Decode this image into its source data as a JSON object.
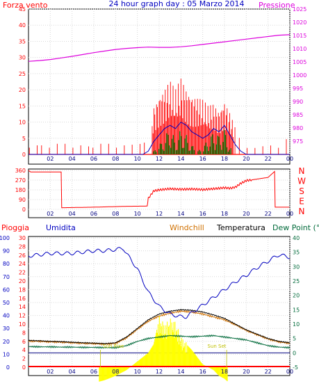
{
  "header": {
    "left_label": "Forza vento",
    "title": "24 hour graph day : 05 Marzo 2014",
    "right_label": "Pressione"
  },
  "colors": {
    "red": "#ff0000",
    "blue": "#0000c0",
    "magenta": "#dd00dd",
    "green": "#007000",
    "dark_green": "#006a3a",
    "orange": "#d07000",
    "yellow": "#ffff00",
    "black": "#000000",
    "cyan": "#008080",
    "grid": "#d8d8d8"
  },
  "chart_data": [
    {
      "id": "wind-pressure",
      "type": "line",
      "y_left": {
        "label": "Forza vento",
        "min": 0,
        "max": 45,
        "ticks": [
          "0",
          "5",
          "10",
          "15",
          "20",
          "25",
          "30",
          "35",
          "40",
          "45"
        ]
      },
      "y_right": {
        "label": "Pressione",
        "min": 970,
        "max": 1025,
        "ticks": [
          "975",
          "980",
          "985",
          "990",
          "995",
          "1000",
          "1005",
          "1010",
          "1015",
          "1020",
          "1025"
        ]
      },
      "x_ticks": [
        "02",
        "04",
        "06",
        "08",
        "10",
        "12",
        "14",
        "16",
        "18",
        "20",
        "22",
        "00"
      ],
      "x_range_hours": [
        0,
        24
      ],
      "series": [
        {
          "name": "Pressione",
          "color": "magenta",
          "x": [
            0,
            1,
            2,
            3,
            4,
            5,
            6,
            7,
            8,
            9,
            10,
            11,
            12,
            13,
            14,
            15,
            16,
            17,
            18,
            19,
            20,
            21,
            22,
            23,
            24
          ],
          "values": [
            1005.2,
            1005.5,
            1005.9,
            1006.5,
            1007.1,
            1007.8,
            1008.5,
            1009.1,
            1009.7,
            1010.1,
            1010.4,
            1010.6,
            1010.5,
            1010.5,
            1010.7,
            1011.1,
            1011.6,
            1012.1,
            1012.6,
            1013.1,
            1013.6,
            1014.1,
            1014.6,
            1015.1,
            1015.3
          ]
        },
        {
          "name": "wind_max",
          "color": "red",
          "x": [
            0,
            1,
            2,
            3,
            4,
            5,
            6,
            7,
            8,
            9,
            10,
            11,
            11.5,
            12,
            12.5,
            13,
            13.5,
            14,
            14.5,
            15,
            15.5,
            16,
            16.5,
            17,
            17.5,
            18,
            18.5,
            19,
            19.5,
            20,
            21,
            22,
            23,
            24
          ],
          "values": [
            2,
            3,
            2,
            4,
            2,
            3,
            2,
            4,
            2,
            3,
            3,
            4,
            15,
            19,
            21,
            23,
            20,
            24,
            21,
            19,
            18,
            17,
            15,
            16,
            14,
            17,
            13,
            8,
            4,
            2,
            2,
            3,
            2,
            6
          ]
        },
        {
          "name": "wind_avg",
          "color": "blue",
          "x": [
            0,
            10.5,
            11,
            11.5,
            12,
            12.5,
            13,
            13.5,
            14,
            14.5,
            15,
            15.5,
            16,
            16.5,
            17,
            17.5,
            18,
            18.5,
            19,
            19.5,
            20,
            24
          ],
          "values": [
            0,
            0,
            1,
            4,
            6,
            8,
            9,
            8,
            10,
            9,
            7,
            6,
            5,
            6,
            8,
            7,
            9,
            6,
            3,
            1,
            0,
            0
          ]
        },
        {
          "name": "wind_gust_bars",
          "color": "green",
          "x": [
            11.5,
            12,
            12.5,
            13,
            13.5,
            14,
            14.5,
            15,
            15.5,
            16,
            16.5,
            17,
            17.5,
            18,
            18.5
          ],
          "values": [
            1,
            3,
            5,
            9,
            4,
            8,
            6,
            3,
            1,
            2,
            5,
            7,
            6,
            8,
            2
          ]
        }
      ]
    },
    {
      "id": "wind-direction",
      "type": "line",
      "y_left": {
        "min": 0,
        "max": 360,
        "ticks": [
          "0",
          "90",
          "180",
          "270",
          "360"
        ]
      },
      "y_right_labels": [
        "N",
        "W",
        "S",
        "E",
        "N"
      ],
      "x_ticks": [
        "02",
        "04",
        "06",
        "08",
        "10",
        "12",
        "14",
        "16",
        "18",
        "20",
        "22",
        "00"
      ],
      "series": [
        {
          "name": "direzione",
          "color": "red",
          "x": [
            0,
            0.2,
            3,
            3.05,
            6,
            9,
            10.9,
            11,
            11.5,
            12,
            13,
            14,
            15,
            16,
            17,
            18,
            18.5,
            19,
            19.5,
            20,
            22,
            22.6,
            22.65,
            24
          ],
          "values": [
            360,
            345,
            345,
            15,
            20,
            28,
            30,
            100,
            170,
            180,
            190,
            185,
            188,
            182,
            190,
            200,
            195,
            205,
            240,
            265,
            295,
            350,
            20,
            20
          ]
        }
      ]
    },
    {
      "id": "temp-humidity",
      "type": "line",
      "headers": [
        "Pioggia",
        "Umidita",
        "Windchill",
        "Temperatura",
        "Dew Point (°C"
      ],
      "y_umidita": {
        "min": 0,
        "max": 100,
        "ticks": [
          "0",
          "10",
          "20",
          "30",
          "40",
          "50",
          "60",
          "70",
          "80",
          "90",
          "100"
        ]
      },
      "y_pioggia": {
        "min": 0,
        "max": 30,
        "ticks": [
          "0",
          "2",
          "4",
          "6",
          "8",
          "10",
          "12",
          "14",
          "16",
          "18",
          "20",
          "22",
          "24",
          "26",
          "28",
          "30"
        ]
      },
      "y_temp": {
        "min": -5,
        "max": 40,
        "ticks": [
          "-5",
          "0",
          "5",
          "10",
          "15",
          "20",
          "25",
          "30",
          "35",
          "40"
        ]
      },
      "x_ticks": [
        "02",
        "04",
        "06",
        "08",
        "10",
        "12",
        "14",
        "16",
        "18",
        "20",
        "22",
        "00"
      ],
      "annotations": [
        "Sun Rise",
        "Sun Set"
      ],
      "series": [
        {
          "name": "Umidita",
          "color": "blue",
          "x": [
            0,
            1,
            2,
            3,
            4,
            5,
            6,
            7,
            8,
            8.7,
            9,
            10,
            11,
            12,
            13,
            14,
            14.5,
            15,
            16,
            17,
            18,
            19,
            20,
            21,
            22,
            23,
            24
          ],
          "values": [
            86,
            87,
            88,
            88,
            88,
            89,
            90,
            90,
            91,
            92,
            88,
            76,
            58,
            47,
            41,
            39,
            39,
            42,
            48,
            54,
            60,
            66,
            71,
            77,
            82,
            87,
            85
          ]
        },
        {
          "name": "Temperatura",
          "color": "black",
          "x": [
            0,
            1,
            2,
            3,
            4,
            5,
            6,
            7,
            8,
            9,
            10,
            11,
            12,
            13,
            14,
            15,
            16,
            17,
            18,
            19,
            20,
            21,
            22,
            23,
            24
          ],
          "values": [
            4.3,
            4.2,
            4.0,
            3.9,
            3.7,
            3.5,
            3.4,
            3.2,
            3.5,
            5.5,
            8.5,
            11.5,
            13.5,
            14.5,
            15,
            14.8,
            14.2,
            13.2,
            12,
            10,
            8,
            6.5,
            5,
            4,
            3.5
          ]
        },
        {
          "name": "Windchill",
          "color": "orange",
          "x": [
            0,
            1,
            2,
            3,
            4,
            5,
            6,
            7,
            8,
            9,
            10,
            11,
            12,
            13,
            14,
            15,
            16,
            17,
            18,
            19,
            20,
            21,
            22,
            23,
            24
          ],
          "values": [
            4.1,
            4.0,
            3.8,
            3.7,
            3.5,
            3.3,
            3.2,
            3.0,
            3.3,
            5.2,
            8.2,
            11,
            12.8,
            13.8,
            14.5,
            14.2,
            13.5,
            12.5,
            11.5,
            9.8,
            7.8,
            6.3,
            4.8,
            3.8,
            3.3
          ]
        },
        {
          "name": "Dew Point",
          "color": "dark_green",
          "x": [
            0,
            1,
            2,
            3,
            4,
            5,
            6,
            7,
            8,
            9,
            10,
            11,
            12,
            13,
            14,
            15,
            16,
            17,
            18,
            19,
            20,
            21,
            22,
            23,
            24
          ],
          "values": [
            2.2,
            2.1,
            2.1,
            2.0,
            2.0,
            1.9,
            1.9,
            1.8,
            1.8,
            2.5,
            4,
            5,
            5.5,
            6,
            5.8,
            5.6,
            5.8,
            6,
            5.5,
            5,
            4.5,
            3.5,
            2.5,
            2,
            1.8
          ]
        },
        {
          "name": "Radiazione",
          "color": "yellow",
          "x": [
            0,
            6.5,
            7,
            8,
            9,
            10,
            11,
            11.5,
            12,
            12.5,
            13,
            13.5,
            14,
            14.5,
            15,
            16,
            17,
            17.5,
            18,
            18.3,
            24
          ],
          "values": [
            0,
            0,
            0.5,
            2,
            4,
            7,
            10,
            13,
            22,
            19,
            21,
            20,
            15,
            13,
            11,
            6,
            4,
            2,
            1,
            0,
            0
          ]
        }
      ]
    }
  ]
}
